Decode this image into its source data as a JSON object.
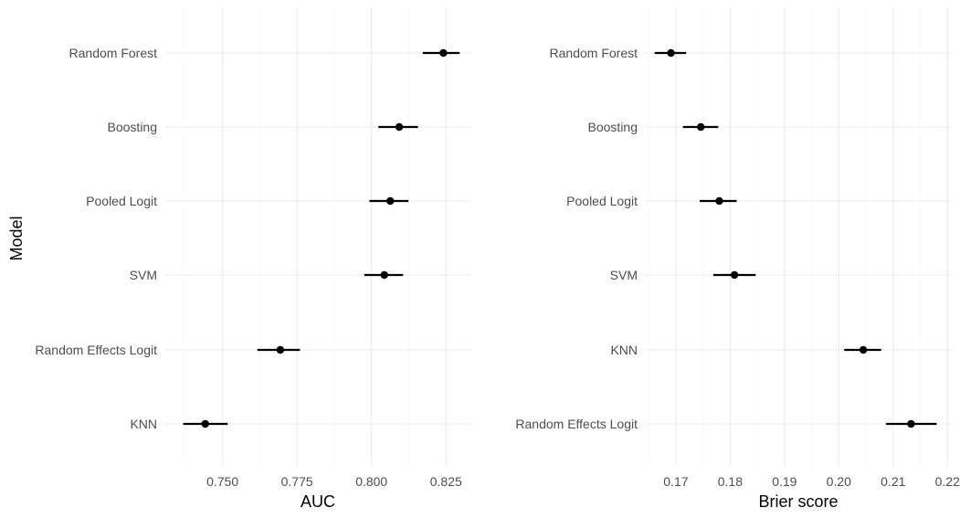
{
  "y_axis_title": "Model",
  "chart_data": [
    {
      "type": "scatter",
      "xlabel": "AUC",
      "ylabel": "Model",
      "grid": true,
      "xlim": [
        0.7305,
        0.8335
      ],
      "xticks": [
        0.75,
        0.775,
        0.8,
        0.825
      ],
      "xtick_labels": [
        "0.750",
        "0.775",
        "0.800",
        "0.825"
      ],
      "categories": [
        "Random Forest",
        "Boosting",
        "Pooled Logit",
        "SVM",
        "Random Effects Logit",
        "KNN"
      ],
      "estimate": [
        0.8241,
        0.8093,
        0.8063,
        0.8043,
        0.7694,
        0.7442
      ],
      "ci_low": [
        0.8172,
        0.8023,
        0.7993,
        0.7976,
        0.7617,
        0.7368
      ],
      "ci_high": [
        0.8296,
        0.8156,
        0.8124,
        0.8106,
        0.776,
        0.7517
      ]
    },
    {
      "type": "scatter",
      "xlabel": "Brier score",
      "ylabel": "",
      "grid": true,
      "xlim": [
        0.1643,
        0.2208
      ],
      "xticks": [
        0.17,
        0.18,
        0.19,
        0.2,
        0.21,
        0.22
      ],
      "xtick_labels": [
        "0.17",
        "0.18",
        "0.19",
        "0.20",
        "0.21",
        "0.22"
      ],
      "categories": [
        "Random Forest",
        "Boosting",
        "Pooled Logit",
        "SVM",
        "KNN",
        "Random Effects Logit"
      ],
      "estimate": [
        0.1691,
        0.1746,
        0.178,
        0.1808,
        0.2045,
        0.2133
      ],
      "ci_low": [
        0.1661,
        0.1713,
        0.1744,
        0.1769,
        0.201,
        0.2087
      ],
      "ci_high": [
        0.1719,
        0.1778,
        0.1812,
        0.1847,
        0.2078,
        0.218
      ]
    }
  ]
}
